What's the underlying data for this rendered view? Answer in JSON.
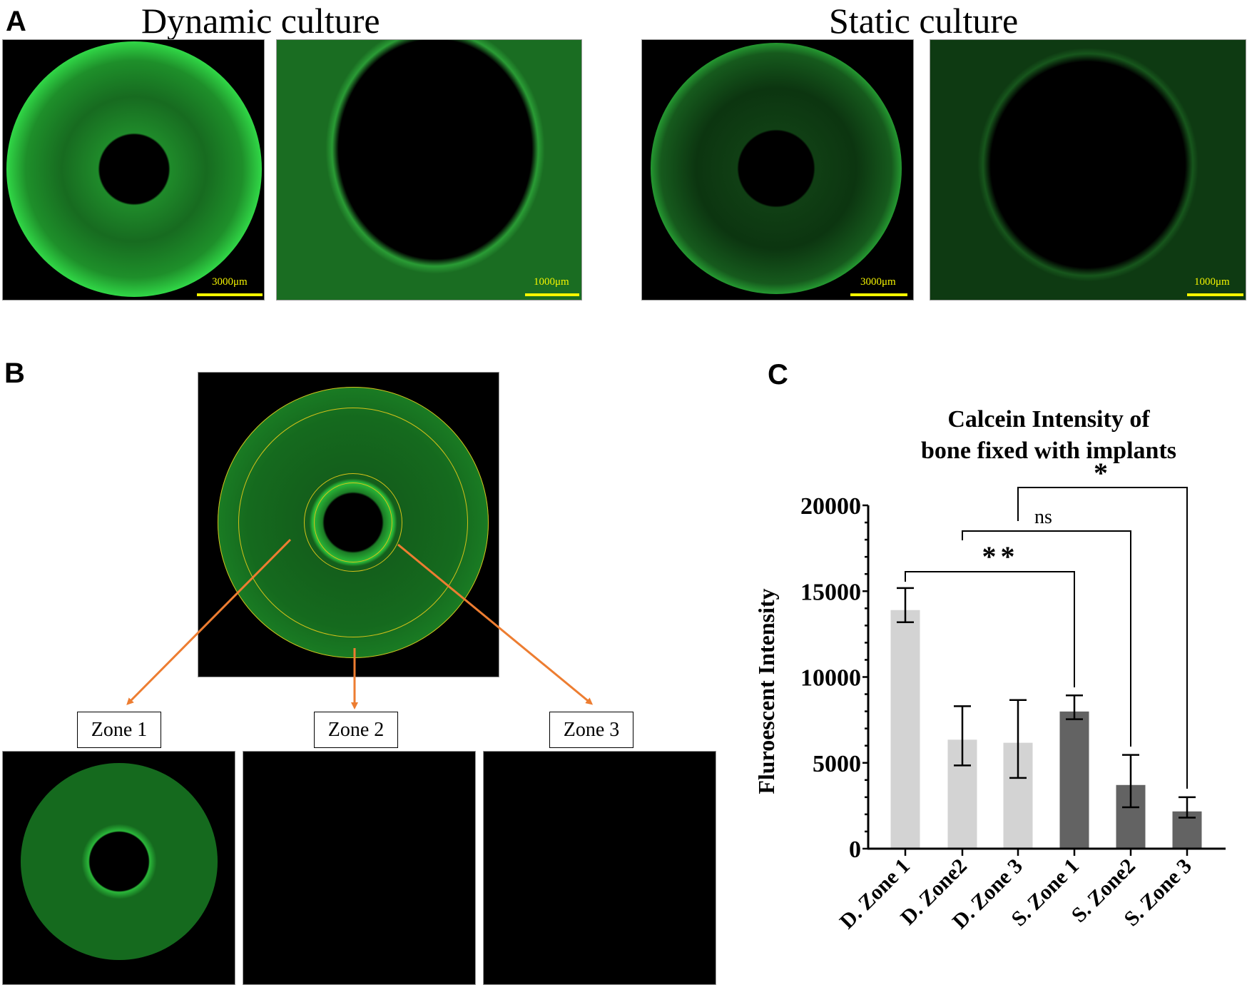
{
  "panel_a": {
    "label": "A",
    "dynamic_title": "Dynamic culture",
    "static_title": "Static culture",
    "images": [
      {
        "name": "dynamic-whole",
        "scale_label": "3000μm"
      },
      {
        "name": "dynamic-zoom",
        "scale_label": "1000μm"
      },
      {
        "name": "static-whole",
        "scale_label": "3000μm"
      },
      {
        "name": "static-zoom",
        "scale_label": "1000μm"
      }
    ]
  },
  "panel_b": {
    "label": "B",
    "zones": [
      {
        "label": "Zone 1"
      },
      {
        "label": "Zone 2"
      },
      {
        "label": "Zone 3"
      }
    ],
    "colors": {
      "arrow": "#ed7d31",
      "ring_outline": "#d4c11a",
      "fluorescence": "#22cc33"
    }
  },
  "panel_c": {
    "label": "C",
    "title_line1": "Calcein Intensity of",
    "title_line2": "bone fixed with implants"
  },
  "chart_data": {
    "type": "bar",
    "title": "Calcein Intensity of bone fixed with implants",
    "xlabel": "",
    "ylabel": "Fluroescent Intensity",
    "ylabel_display": "Fluroescent Intensity",
    "ylim": [
      0,
      20000
    ],
    "yticks": [
      0,
      5000,
      10000,
      15000,
      20000
    ],
    "ytick_labels": [
      "0",
      "5000",
      "10000",
      "15000",
      "20000"
    ],
    "minor_ticks_per_major": 5,
    "grid": false,
    "categories": [
      "D. Zone 1",
      "D. Zone2",
      "D. Zone 3",
      "S. Zone 1",
      "S. Zone2",
      "S. Zone 3"
    ],
    "values": [
      13900,
      6350,
      6170,
      7990,
      3710,
      2170
    ],
    "error_upper": [
      15180,
      8300,
      8660,
      8930,
      5460,
      3000
    ],
    "error_lower": [
      13190,
      4850,
      4120,
      7540,
      2410,
      1810
    ],
    "bar_colors": [
      "#d3d3d3",
      "#d3d3d3",
      "#d3d3d3",
      "#636363",
      "#636363",
      "#636363"
    ],
    "significance": [
      {
        "from": "D. Zone 1",
        "to": "S. Zone 1",
        "label": "**"
      },
      {
        "from": "D. Zone2",
        "to": "S. Zone2",
        "label": "ns"
      },
      {
        "from": "D. Zone 3",
        "to": "S. Zone 3",
        "label": "*"
      }
    ]
  }
}
